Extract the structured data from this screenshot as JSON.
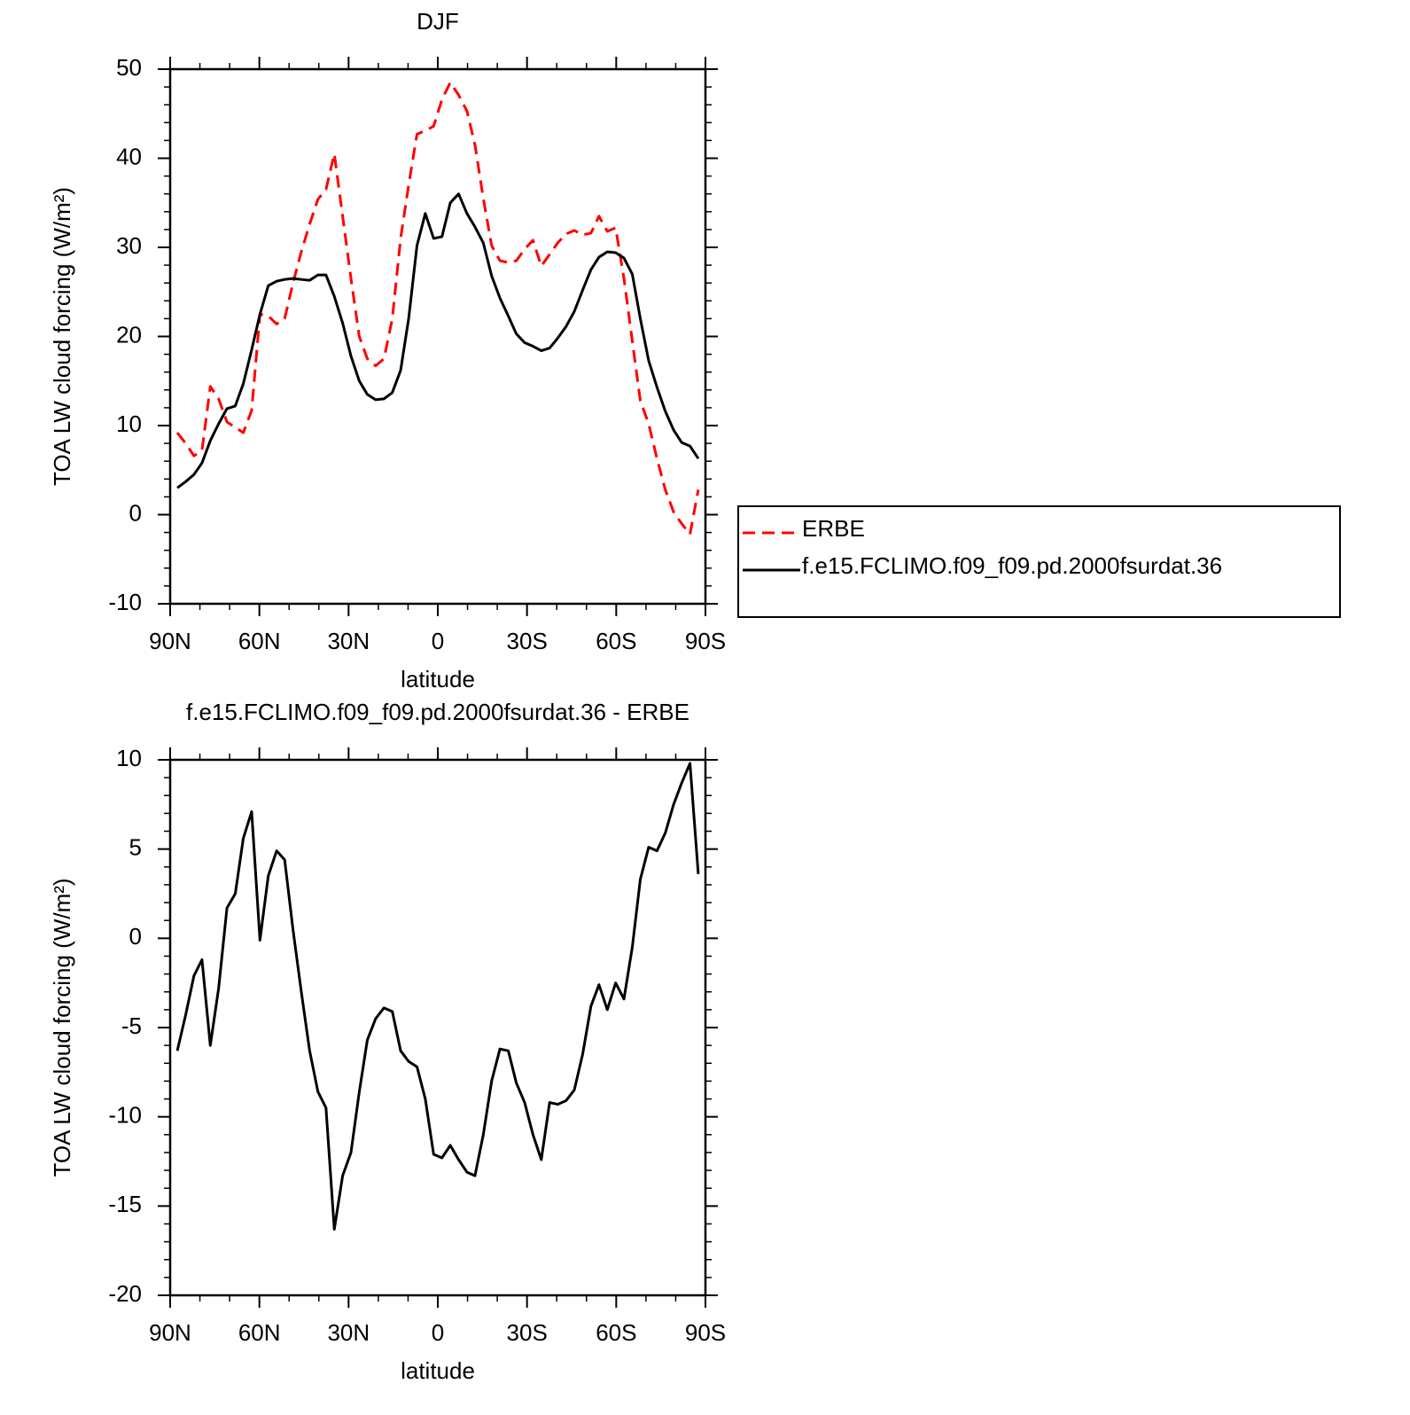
{
  "chart_data": [
    {
      "type": "line",
      "title": "DJF",
      "xlabel": "latitude",
      "ylabel": "TOA LW cloud forcing (W/m²)",
      "x": [
        87.6,
        84.8,
        82.0,
        79.3,
        76.5,
        73.7,
        70.9,
        68.1,
        65.4,
        62.6,
        59.8,
        57.0,
        54.2,
        51.5,
        48.7,
        45.9,
        43.1,
        40.3,
        37.6,
        34.8,
        32.0,
        29.2,
        26.4,
        23.7,
        20.9,
        18.1,
        15.3,
        12.5,
        9.8,
        7.0,
        4.2,
        1.4,
        -1.4,
        -4.2,
        -7.0,
        -9.8,
        -12.5,
        -15.3,
        -18.1,
        -20.9,
        -23.7,
        -26.4,
        -29.2,
        -32.0,
        -34.8,
        -37.6,
        -40.3,
        -43.1,
        -45.9,
        -48.7,
        -51.5,
        -54.2,
        -57.0,
        -59.8,
        -62.6,
        -65.4,
        -68.1,
        -70.9,
        -73.7,
        -76.5,
        -79.3,
        -82.0,
        -84.8,
        -87.6
      ],
      "series": [
        {
          "name": "ERBE",
          "color": "#ff0000",
          "line_style": "dashed",
          "values": [
            9.2,
            8,
            6.6,
            7.2,
            14.4,
            13,
            10.4,
            9.8,
            9.2,
            11.7,
            22.5,
            22.3,
            21.4,
            22,
            26,
            29.5,
            32.6,
            35.4,
            36.5,
            40.5,
            33.5,
            26.5,
            20,
            17.5,
            16.7,
            17.5,
            22,
            31,
            37,
            42.7,
            43.1,
            43.6,
            46.6,
            48.5,
            47.1,
            45.3,
            41.5,
            35.5,
            30.2,
            28.5,
            28.3,
            28.5,
            29.8,
            30.8,
            27.9,
            29.2,
            30.5,
            31.5,
            31.9,
            31.4,
            31.6,
            33.5,
            31.8,
            32.2,
            26.5,
            19.5,
            12.8,
            10.2,
            6.3,
            2.8,
            0.3,
            -1,
            -2.2,
            2.8
          ]
        },
        {
          "name": "f.e15.FCLIMO.f09_f09.pd.2000fsurdat.36",
          "color": "#000000",
          "line_style": "solid",
          "values": [
            3,
            3.7,
            4.5,
            5.8,
            8.3,
            10.2,
            11.9,
            12.2,
            14.7,
            18.5,
            22.5,
            25.7,
            26.2,
            26.4,
            26.5,
            26.4,
            26.3,
            26.9,
            26.9,
            24.5,
            21.5,
            17.8,
            15,
            13.5,
            12.9,
            13,
            13.7,
            16.2,
            22,
            30.2,
            33.8,
            31,
            31.2,
            35,
            36,
            33.8,
            32.3,
            30.5,
            26.8,
            24.3,
            22.3,
            20.3,
            19.3,
            18.9,
            18.4,
            18.7,
            19.8,
            21.1,
            22.8,
            25.2,
            27.5,
            28.9,
            29.5,
            29.4,
            28.8,
            27,
            22,
            17.3,
            14.3,
            11.6,
            9.5,
            8.1,
            7.7,
            6.3
          ]
        }
      ],
      "xlim": [
        90,
        -90
      ],
      "xticks": [
        {
          "value": 90,
          "label": "90N"
        },
        {
          "value": 60,
          "label": "60N"
        },
        {
          "value": 30,
          "label": "30N"
        },
        0,
        {
          "value": -30,
          "label": "30S"
        },
        {
          "value": -60,
          "label": "60S"
        },
        {
          "value": -90,
          "label": "90S"
        }
      ],
      "ylim": [
        -10,
        50
      ],
      "yticks": [
        -10,
        0,
        10,
        20,
        30,
        40,
        50
      ],
      "legend": "right"
    },
    {
      "type": "line",
      "title": "f.e15.FCLIMO.f09_f09.pd.2000fsurdat.36 - ERBE",
      "xlabel": "latitude",
      "ylabel": "TOA LW cloud forcing (W/m²)",
      "x": [
        87.6,
        84.8,
        82.0,
        79.3,
        76.5,
        73.7,
        70.9,
        68.1,
        65.4,
        62.6,
        59.8,
        57.0,
        54.2,
        51.5,
        48.7,
        45.9,
        43.1,
        40.3,
        37.6,
        34.8,
        32.0,
        29.2,
        26.4,
        23.7,
        20.9,
        18.1,
        15.3,
        12.5,
        9.8,
        7.0,
        4.2,
        1.4,
        -1.4,
        -4.2,
        -7.0,
        -9.8,
        -12.5,
        -15.3,
        -18.1,
        -20.9,
        -23.7,
        -26.4,
        -29.2,
        -32.0,
        -34.8,
        -37.6,
        -40.3,
        -43.1,
        -45.9,
        -48.7,
        -51.5,
        -54.2,
        -57.0,
        -59.8,
        -62.6,
        -65.4,
        -68.1,
        -70.9,
        -73.7,
        -76.5,
        -79.3,
        -82.0,
        -84.8,
        -87.6
      ],
      "color": "#000000",
      "values": [
        -6.3,
        -4.3,
        -2.1,
        -1.2,
        -6,
        -2.8,
        1.7,
        2.5,
        5.6,
        7.1,
        -0.1,
        3.5,
        4.9,
        4.4,
        0.5,
        -3,
        -6.3,
        -8.6,
        -9.5,
        -16.3,
        -13.3,
        -12,
        -8.6,
        -5.7,
        -4.5,
        -3.9,
        -4.1,
        -6.3,
        -6.9,
        -7.2,
        -9,
        -12.1,
        -12.3,
        -11.6,
        -12.4,
        -13.1,
        -13.3,
        -11,
        -8,
        -6.2,
        -6.3,
        -8.1,
        -9.2,
        -11,
        -12.4,
        -9.2,
        -9.3,
        -9.1,
        -8.5,
        -6.5,
        -3.8,
        -2.6,
        -4,
        -2.5,
        -3.4,
        -0.5,
        3.3,
        5.1,
        4.9,
        5.9,
        7.5,
        8.7,
        9.8,
        3.6
      ],
      "xlim": [
        90,
        -90
      ],
      "xticks": [
        {
          "value": 90,
          "label": "90N"
        },
        {
          "value": 60,
          "label": "60N"
        },
        {
          "value": 30,
          "label": "30N"
        },
        0,
        {
          "value": -30,
          "label": "30S"
        },
        {
          "value": -60,
          "label": "60S"
        },
        {
          "value": -90,
          "label": "90S"
        }
      ],
      "ylim": [
        -20,
        10
      ],
      "yticks": [
        -20,
        -15,
        -10,
        -5,
        0,
        5,
        10
      ]
    }
  ]
}
